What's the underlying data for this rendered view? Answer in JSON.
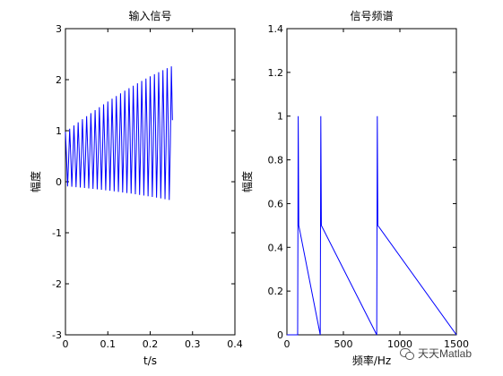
{
  "chart_data": [
    {
      "type": "line",
      "title": "输入信号",
      "xlabel": "t/s",
      "ylabel": "幅度",
      "xlim": [
        0,
        0.4
      ],
      "ylim": [
        -3,
        3
      ],
      "xticks": [
        "0",
        "0.1",
        "0.2",
        "0.3",
        "0.4"
      ],
      "yticks": [
        "-3",
        "-2",
        "-1",
        "0",
        "1",
        "2",
        "3"
      ],
      "series": [
        {
          "color": "#0000ff",
          "signal": "sum of three unit sinusoids",
          "components_hz": [
            100,
            300,
            800
          ],
          "fs_hz": 400,
          "t_start": 0,
          "t_end": 0.2525
        }
      ]
    },
    {
      "type": "line",
      "title": "信号频谱",
      "xlabel": "频率/Hz",
      "ylabel": "幅度",
      "xlim": [
        0,
        1500
      ],
      "ylim": [
        0,
        1.4
      ],
      "xticks": [
        "0",
        "500",
        "1000",
        "1500"
      ],
      "yticks": [
        "0",
        "0.2",
        "0.4",
        "0.6",
        "0.8",
        "1",
        "1.2",
        "1.4"
      ],
      "series": [
        {
          "color": "#0000ff",
          "x": [
            0,
            95,
            100,
            105,
            295,
            300,
            305,
            795,
            800,
            805,
            1500
          ],
          "y": [
            0,
            0,
            1,
            0.5,
            0,
            1,
            0.5,
            0,
            1,
            0.5,
            0
          ]
        }
      ]
    }
  ],
  "watermark": {
    "icon": "wechat-icon",
    "text": "天天Matlab"
  }
}
